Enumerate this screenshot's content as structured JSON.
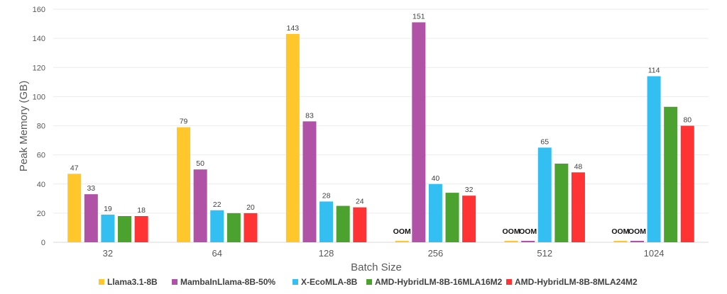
{
  "chart_data": {
    "type": "bar",
    "title": "",
    "xlabel": "Batch Size",
    "ylabel": "Peak Memory (GB)",
    "ylim": [
      0,
      160
    ],
    "yticks": [
      0,
      20,
      40,
      60,
      80,
      100,
      120,
      140,
      160
    ],
    "grid": true,
    "legend_position": "bottom",
    "categories": [
      "32",
      "64",
      "128",
      "256",
      "512",
      "1024"
    ],
    "series": [
      {
        "name": "Llama3.1-8B",
        "color": "#FFC72C",
        "values": [
          47,
          79,
          143,
          1,
          1,
          1
        ],
        "labels": [
          "47",
          "79",
          "143",
          "OOM",
          "OOM",
          "OOM"
        ]
      },
      {
        "name": "MambaInLlama-8B-50%",
        "color": "#B052A6",
        "values": [
          33,
          50,
          83,
          151,
          1,
          1
        ],
        "labels": [
          "33",
          "50",
          "83",
          "151",
          "OOM",
          "OOM"
        ]
      },
      {
        "name": "X-EcoMLA-8B",
        "color": "#33BFF2",
        "values": [
          19,
          22,
          28,
          40,
          65,
          114
        ],
        "labels": [
          "19",
          "22",
          "28",
          "40",
          "65",
          "114"
        ]
      },
      {
        "name": "AMD-HybridLM-8B-16MLA16M2",
        "color": "#4CA22E",
        "values": [
          18,
          20,
          25,
          34,
          54,
          93
        ],
        "labels": [
          null,
          null,
          null,
          null,
          null,
          null
        ]
      },
      {
        "name": "AMD-HybridLM-8B-8MLA24M2",
        "color": "#FF3333",
        "values": [
          18,
          20,
          24,
          32,
          48,
          80
        ],
        "labels": [
          "18",
          "20",
          "24",
          "32",
          "48",
          "80"
        ]
      }
    ]
  }
}
